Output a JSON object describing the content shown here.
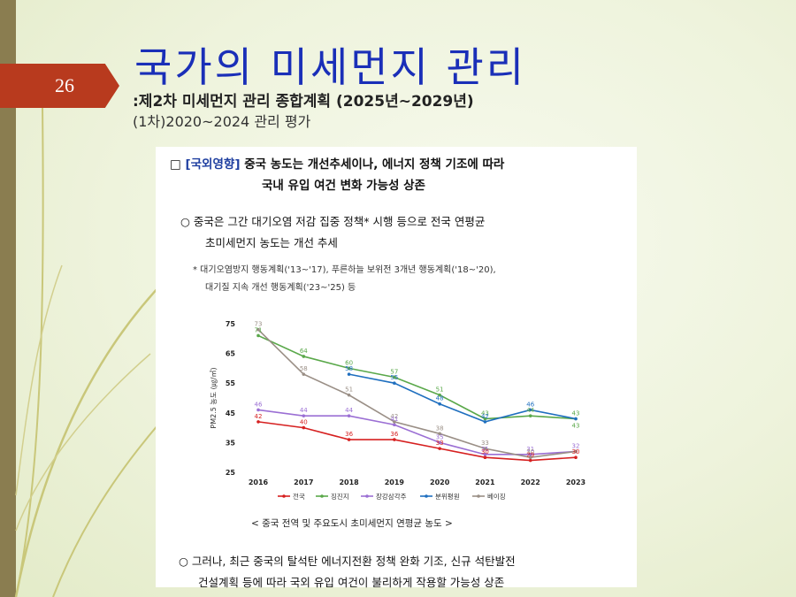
{
  "slide": {
    "page_number": "26",
    "title": "국가의 미세먼지 관리",
    "subtitle1": ":제2차 미세먼지 관리 종합계획 (2025년~2029년)",
    "subtitle2": "(1차)2020~2024 관리 평가"
  },
  "doc": {
    "heading_box": "□",
    "heading_tag": "[국외영향]",
    "heading_line1": "중국 농도는 개선추세이나, 에너지 정책 기조에 따라",
    "heading_line2": "국내 유입 여건 변화 가능성 상존",
    "para1_line1": "○ 중국은 그간 대기오염 저감 집중 정책* 시행 등으로 전국 연평균",
    "para1_line2": "초미세먼지 농도는 개선 추세",
    "note_line1": "* 대기오염방지 행동계획('13~'17), 푸른하늘 보위전 3개년 행동계획('18~'20),",
    "note_line2": "대기질 지속 개선 행동계획('23~'25) 등",
    "caption": "< 중국 전역 및 주요도시 초미세먼지 연평균 농도 >",
    "para2_line1": "○ 그러나, 최근 중국의 탈석탄 에너지전환 정책 완화 기조, 신규 석탄발전",
    "para2_line2": "건설계획 등에 따라 국외 유입 여건이 불리하게 작용할 가능성 상존"
  },
  "chart_data": {
    "type": "line",
    "x": [
      "2016",
      "2017",
      "2018",
      "2019",
      "2020",
      "2021",
      "2022",
      "2023"
    ],
    "ylabel": "PM2.5 농도 (㎍/㎥)",
    "ylim": [
      25,
      75
    ],
    "yticks": [
      "25",
      "35",
      "45",
      "55",
      "65",
      "75"
    ],
    "series": [
      {
        "name": "전국",
        "color": "#d62020",
        "values": [
          42,
          40,
          36,
          36,
          33,
          30,
          29,
          30
        ]
      },
      {
        "name": "징진지",
        "color": "#5aa84a",
        "values": [
          71,
          64,
          60,
          57,
          51,
          43,
          44,
          43
        ]
      },
      {
        "name": "장강삼각주",
        "color": "#9b6fd4",
        "values": [
          46,
          44,
          44,
          41,
          35,
          31,
          31,
          32
        ]
      },
      {
        "name": "분위평원",
        "color": "#1f6fbf",
        "values": [
          null,
          null,
          58,
          55,
          48,
          42,
          46,
          43
        ]
      },
      {
        "name": "베이징",
        "color": "#9a8f86",
        "values": [
          73,
          58,
          51,
          42,
          38,
          33,
          30,
          32
        ]
      }
    ],
    "data_labels": [
      {
        "text": "73",
        "x": "2016",
        "y": 73
      },
      {
        "text": "71",
        "x": "2016",
        "y": 71
      },
      {
        "text": "64",
        "x": "2017",
        "y": 64
      },
      {
        "text": "58",
        "x": "2017",
        "y": 58
      },
      {
        "text": "60",
        "x": "2018",
        "y": 60
      },
      {
        "text": "58",
        "x": "2018",
        "y": 58
      },
      {
        "text": "51",
        "x": "2018",
        "y": 51
      },
      {
        "text": "57",
        "x": "2019",
        "y": 57
      },
      {
        "text": "55",
        "x": "2019",
        "y": 55
      },
      {
        "text": "51",
        "x": "2020",
        "y": 51
      },
      {
        "text": "48",
        "x": "2020",
        "y": 48
      },
      {
        "text": "46",
        "x": "2016",
        "y": 46
      },
      {
        "text": "44",
        "x": "2017",
        "y": 44
      },
      {
        "text": "44",
        "x": "2018",
        "y": 44
      },
      {
        "text": "42",
        "x": "2019",
        "y": 42
      },
      {
        "text": "41",
        "x": "2019",
        "y": 41
      },
      {
        "text": "38",
        "x": "2020",
        "y": 38
      },
      {
        "text": "35",
        "x": "2020",
        "y": 35
      },
      {
        "text": "43",
        "x": "2021",
        "y": 43
      },
      {
        "text": "42",
        "x": "2021",
        "y": 42
      },
      {
        "text": "33",
        "x": "2021",
        "y": 33
      },
      {
        "text": "31",
        "x": "2021",
        "y": 31
      },
      {
        "text": "46",
        "x": "2022",
        "y": 46
      },
      {
        "text": "44",
        "x": "2022",
        "y": 44
      },
      {
        "text": "31",
        "x": "2022",
        "y": 31
      },
      {
        "text": "30",
        "x": "2022",
        "y": 30
      },
      {
        "text": "43",
        "x": "2023",
        "y": 43
      },
      {
        "text": "43",
        "x": "2023",
        "y": 43
      },
      {
        "text": "32",
        "x": "2023",
        "y": 32
      },
      {
        "text": "42",
        "x": "2016",
        "y": 42
      },
      {
        "text": "40",
        "x": "2017",
        "y": 40
      },
      {
        "text": "36",
        "x": "2018",
        "y": 36
      },
      {
        "text": "36",
        "x": "2019",
        "y": 36
      },
      {
        "text": "33",
        "x": "2020",
        "y": 33
      },
      {
        "text": "30",
        "x": "2021",
        "y": 30
      },
      {
        "text": "29",
        "x": "2022",
        "y": 29
      },
      {
        "text": "30",
        "x": "2023",
        "y": 30
      }
    ],
    "legend_position": "bottom"
  }
}
